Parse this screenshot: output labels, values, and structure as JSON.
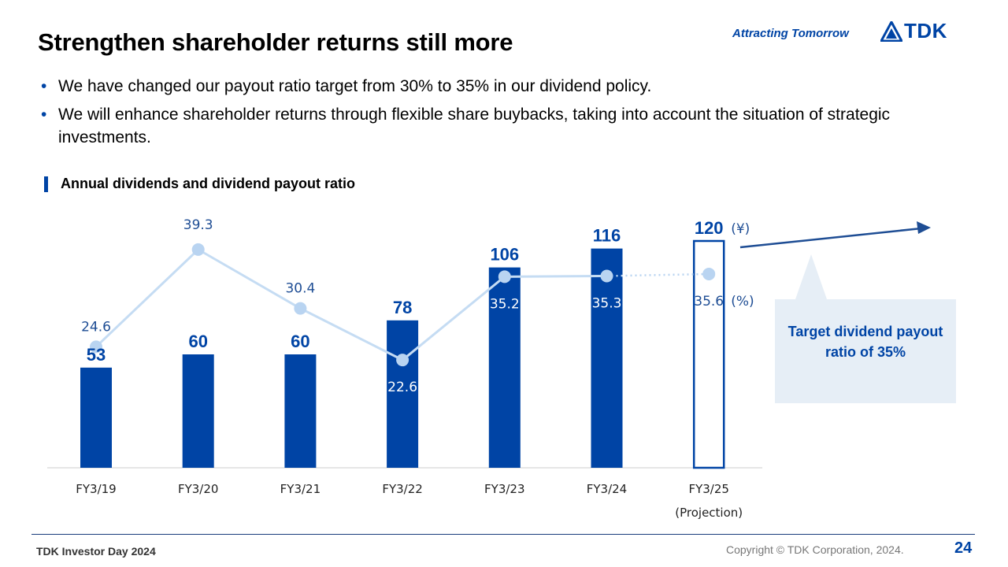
{
  "header": {
    "title": "Strengthen shareholder returns still more",
    "tagline": "Attracting Tomorrow",
    "logo_text": "TDK"
  },
  "bullets": [
    "We have changed our payout ratio target from 30% to 35% in our dividend policy.",
    "We will enhance shareholder returns through flexible share buybacks, taking into account the situation of strategic investments."
  ],
  "bullet_symbol": "•",
  "section_title": "Annual dividends and dividend payout ratio",
  "chart_data": {
    "type": "bar",
    "categories": [
      "FY3/19",
      "FY3/20",
      "FY3/21",
      "FY3/22",
      "FY3/23",
      "FY3/24",
      "FY3/25"
    ],
    "category_note": "(Projection)",
    "series": [
      {
        "name": "",
        "type": "bar",
        "values": [
          53,
          60,
          60,
          78,
          106,
          116,
          120
        ],
        "unit": "(¥)"
      },
      {
        "name": "",
        "type": "line",
        "values": [
          24.6,
          39.3,
          30.4,
          22.6,
          35.2,
          35.3,
          35.6
        ],
        "unit": "(%)"
      }
    ],
    "dividend_labels": [
      "53",
      "60",
      "60",
      "78",
      "106",
      "116",
      "120"
    ],
    "payout_labels": [
      "24.6",
      "39.3",
      "30.4",
      "22.6",
      "35.2",
      "35.3",
      "35.6"
    ],
    "projection_index": 6,
    "colors": {
      "bar": "#0044a5",
      "line": "#c5dcf3",
      "line_dot": "#b9d4f1",
      "label": "#1e4d94",
      "axis": "#cccccc"
    }
  },
  "callout": {
    "text": "Target dividend payout ratio of 35%",
    "bg": "#e6eef6"
  },
  "footer": {
    "event": "TDK Investor Day 2024",
    "copyright": "Copyright  © TDK Corporation, 2024.",
    "page": "24"
  }
}
